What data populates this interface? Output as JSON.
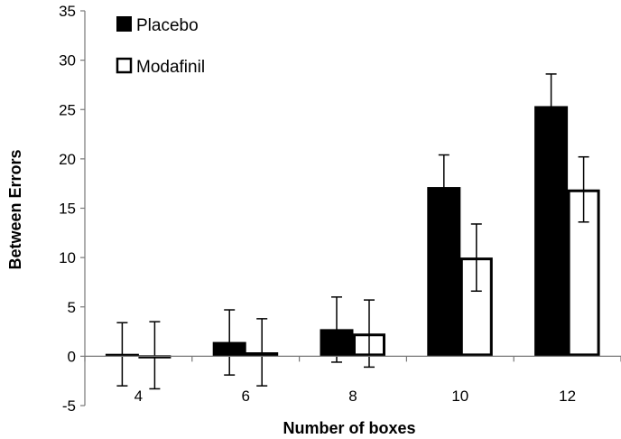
{
  "chart_data": {
    "type": "bar",
    "xlabel": "Number of boxes",
    "ylabel": "Between Errors",
    "ylim": [
      -5,
      35
    ],
    "yticks": [
      -5,
      0,
      5,
      10,
      15,
      20,
      25,
      30,
      35
    ],
    "categories": [
      "4",
      "6",
      "8",
      "10",
      "12"
    ],
    "series": [
      {
        "name": "Placebo",
        "color": "#000000",
        "values": [
          0.2,
          1.4,
          2.7,
          17.1,
          25.3
        ],
        "error": [
          3.2,
          3.3,
          3.3,
          3.3,
          3.3
        ]
      },
      {
        "name": "Modafinil",
        "color": "#ffffff",
        "values": [
          0.1,
          0.4,
          2.3,
          10.0,
          16.9
        ],
        "error": [
          3.4,
          3.4,
          3.4,
          3.4,
          3.3
        ]
      }
    ],
    "grid": false,
    "legend": "top-left"
  }
}
